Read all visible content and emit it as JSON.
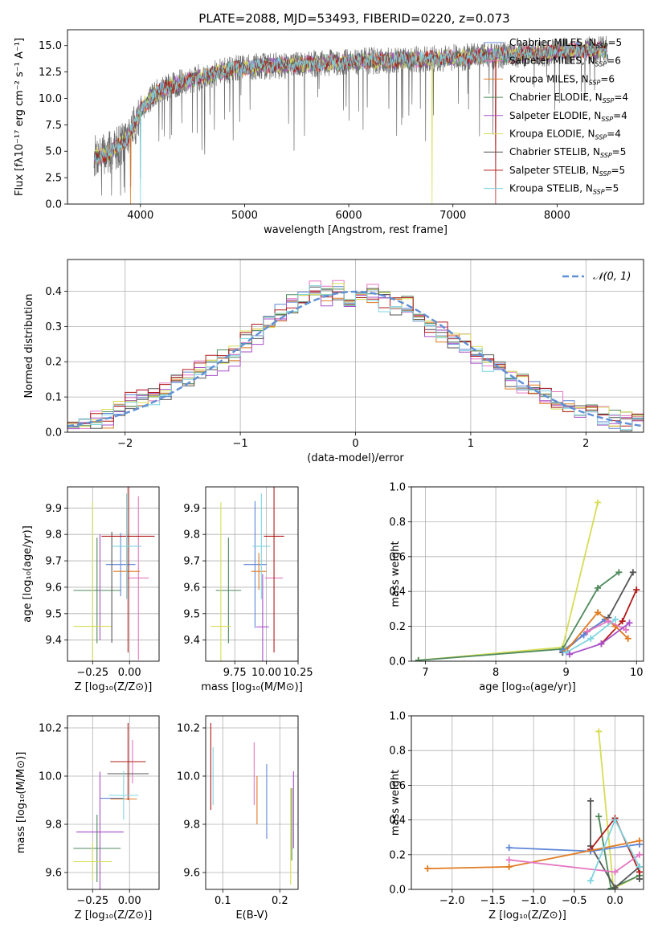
{
  "figure_title": "PLATE=2088, MJD=53493, FIBERID=0220, z=0.073",
  "colors": {
    "Chabrier MILES": "#5f86d8",
    "Salpeter MILES": "#e377c2",
    "Kroupa MILES": "#e07b22",
    "Chabrier ELODIE": "#4f8a5c",
    "Salpeter ELODIE": "#a84fc8",
    "Kroupa ELODIE": "#d6dd55",
    "Chabrier STELIB": "#555555",
    "Salpeter STELIB": "#b31b1b",
    "Kroupa STELIB": "#7fd4e0",
    "normal": "#5f8fd6",
    "grid": "#b0b0b0"
  },
  "chart_data": [
    {
      "id": "spectrum",
      "type": "line",
      "title": "PLATE=2088, MJD=53493, FIBERID=0220, z=0.073",
      "xlabel": "wavelength [Angstrom, rest frame]",
      "ylabel": "Flux [fλ10⁻¹⁷ erg cm⁻² s⁻¹ A⁻¹]",
      "xlim": [
        3300,
        8830
      ],
      "ylim": [
        0,
        16.5
      ],
      "xticks": [
        4000,
        5000,
        6000,
        7000,
        8000
      ],
      "yticks": [
        0.0,
        2.5,
        5.0,
        7.5,
        10.0,
        12.5,
        15.0
      ],
      "grid": false,
      "legend_position": "right",
      "legend": [
        {
          "name": "Chabrier MILES",
          "nssp": "5"
        },
        {
          "name": "Salpeter MILES",
          "nssp": "6"
        },
        {
          "name": "Kroupa MILES",
          "nssp": "6"
        },
        {
          "name": "Chabrier ELODIE",
          "nssp": "4"
        },
        {
          "name": "Salpeter ELODIE",
          "nssp": "4"
        },
        {
          "name": "Kroupa ELODIE",
          "nssp": "4"
        },
        {
          "name": "Chabrier STELIB",
          "nssp": "5"
        },
        {
          "name": "Salpeter STELIB",
          "nssp": "5"
        },
        {
          "name": "Kroupa STELIB",
          "nssp": "5"
        }
      ],
      "data_envelope": {
        "x": [
          3550,
          3700,
          3850,
          3950,
          4000,
          4150,
          4300,
          4500,
          4700,
          4900,
          5100,
          5300,
          5500,
          5700,
          5900,
          6100,
          6300,
          6500,
          6700,
          6900,
          7100,
          7300,
          7500,
          7700,
          7900,
          8100,
          8300,
          8500
        ],
        "y": [
          4.5,
          4.8,
          6.0,
          7.5,
          9.0,
          10.5,
          11.2,
          11.8,
          12.3,
          12.8,
          13.0,
          13.1,
          13.2,
          13.3,
          13.4,
          13.5,
          13.6,
          13.6,
          13.7,
          13.8,
          13.9,
          14.0,
          14.1,
          14.2,
          14.3,
          14.5,
          14.6,
          14.6
        ]
      },
      "cutoffs": {
        "Kroupa MILES": 3905,
        "Kroupa ELODIE": 6800,
        "Salpeter STELIB": 7410,
        "Kroupa STELIB": 4000
      }
    },
    {
      "id": "residual_hist",
      "type": "bar",
      "xlabel": "(data-model)/error",
      "ylabel": "Normed distribution",
      "xlim": [
        -2.5,
        2.5
      ],
      "ylim": [
        0,
        0.49
      ],
      "xticks": [
        -2,
        -1,
        0,
        1,
        2
      ],
      "yticks": [
        0.0,
        0.1,
        0.2,
        0.3,
        0.4
      ],
      "grid": true,
      "legend_position": "top-right",
      "legend": [
        {
          "name": "𝒩(0, 1)"
        }
      ],
      "bin_width": 0.1,
      "centers": [
        -2.45,
        -2.35,
        -2.25,
        -2.15,
        -2.05,
        -1.95,
        -1.85,
        -1.75,
        -1.65,
        -1.55,
        -1.45,
        -1.35,
        -1.25,
        -1.15,
        -1.05,
        -0.95,
        -0.85,
        -0.75,
        -0.65,
        -0.55,
        -0.45,
        -0.35,
        -0.25,
        -0.15,
        -0.05,
        0.05,
        0.15,
        0.25,
        0.35,
        0.45,
        0.55,
        0.65,
        0.75,
        0.85,
        0.95,
        1.05,
        1.15,
        1.25,
        1.35,
        1.45,
        1.55,
        1.65,
        1.75,
        1.85,
        1.95,
        2.05,
        2.15,
        2.25,
        2.35,
        2.45
      ],
      "values": [
        0.025,
        0.028,
        0.035,
        0.04,
        0.06,
        0.085,
        0.09,
        0.105,
        0.12,
        0.14,
        0.15,
        0.18,
        0.19,
        0.2,
        0.22,
        0.26,
        0.28,
        0.31,
        0.34,
        0.36,
        0.38,
        0.4,
        0.39,
        0.4,
        0.38,
        0.38,
        0.39,
        0.37,
        0.36,
        0.36,
        0.32,
        0.3,
        0.28,
        0.26,
        0.25,
        0.22,
        0.2,
        0.18,
        0.15,
        0.13,
        0.12,
        0.1,
        0.085,
        0.075,
        0.06,
        0.05,
        0.045,
        0.035,
        0.03,
        0.025
      ],
      "series_jitter": [
        0.0,
        0.012,
        -0.01,
        0.02,
        -0.018,
        0.008,
        -0.006,
        0.015,
        -0.012
      ],
      "normal_curve": {
        "name": "𝒩(0, 1)",
        "mu": 0,
        "sigma": 1
      }
    },
    {
      "id": "age_vs_Z",
      "type": "scatter",
      "xlabel": "Z [log₁₀(Z/Z⊙)]",
      "ylabel": "age  [log₁₀(age/yr)]",
      "xlim": [
        -0.42,
        0.2
      ],
      "ylim": [
        9.32,
        9.98
      ],
      "xticks": [
        -0.25,
        0.0
      ],
      "yticks": [
        9.4,
        9.5,
        9.6,
        9.7,
        9.8,
        9.9
      ],
      "grid": true,
      "points": [
        {
          "series": "Chabrier MILES",
          "x": -0.06,
          "y": 9.686,
          "xerr": 0.1,
          "yerr": 0.12
        },
        {
          "series": "Salpeter MILES",
          "x": 0.06,
          "y": 9.635,
          "xerr": 0.07,
          "yerr": 0.31
        },
        {
          "series": "Kroupa MILES",
          "x": -0.02,
          "y": 9.66,
          "xerr": 0.09,
          "yerr": 0.1
        },
        {
          "series": "Chabrier ELODIE",
          "x": -0.22,
          "y": 9.588,
          "xerr": 0.16,
          "yerr": 0.2
        },
        {
          "series": "Salpeter ELODIE",
          "x": -0.2,
          "y": 9.6,
          "xerr": 0.0,
          "yerr": 0.2
        },
        {
          "series": "Kroupa ELODIE",
          "x": -0.25,
          "y": 9.452,
          "xerr": 0.13,
          "yerr": 0.47
        },
        {
          "series": "Chabrier STELIB",
          "x": -0.12,
          "y": 9.6,
          "xerr": 0.0,
          "yerr": 0.21
        },
        {
          "series": "Salpeter STELIB",
          "x": -0.01,
          "y": 9.793,
          "xerr": 0.18,
          "yerr": 0.44
        },
        {
          "series": "Kroupa STELIB",
          "x": -0.02,
          "y": 9.755,
          "xerr": 0.1,
          "yerr": 0.2
        }
      ]
    },
    {
      "id": "age_vs_mass",
      "type": "scatter",
      "xlabel": "mass [log₁₀(M/M⊙)]",
      "ylabel": "",
      "xlim": [
        9.52,
        10.25
      ],
      "ylim": [
        9.32,
        9.98
      ],
      "xticks": [
        9.75,
        10.0,
        10.25
      ],
      "yticks": [
        9.4,
        9.5,
        9.6,
        9.7,
        9.8,
        9.9
      ],
      "grid": true,
      "points": [
        {
          "series": "Chabrier MILES",
          "x": 9.91,
          "y": 9.686,
          "xerr": 0.09,
          "yerr": 0.24
        },
        {
          "series": "Salpeter MILES",
          "x": 10.06,
          "y": 9.635,
          "xerr": 0.07,
          "yerr": 0.0
        },
        {
          "series": "Kroupa MILES",
          "x": 9.94,
          "y": 9.66,
          "xerr": 0.06,
          "yerr": 0.07
        },
        {
          "series": "Chabrier ELODIE",
          "x": 9.7,
          "y": 9.588,
          "xerr": 0.1,
          "yerr": 0.2
        },
        {
          "series": "Salpeter ELODIE",
          "x": 9.97,
          "y": 9.45,
          "xerr": 0.05,
          "yerr": 0.2
        },
        {
          "series": "Kroupa ELODIE",
          "x": 9.64,
          "y": 9.452,
          "xerr": 0.08,
          "yerr": 0.47
        },
        {
          "series": "Chabrier STELIB",
          "x": 10.0,
          "y": 9.64,
          "xerr": 0.0,
          "yerr": 0.0
        },
        {
          "series": "Salpeter STELIB",
          "x": 10.06,
          "y": 9.793,
          "xerr": 0.08,
          "yerr": 0.44
        },
        {
          "series": "Kroupa STELIB",
          "x": 9.96,
          "y": 9.755,
          "xerr": 0.07,
          "yerr": 0.2
        }
      ]
    },
    {
      "id": "massweight_vs_age",
      "type": "line",
      "xlabel": "age  [log₁₀(age/yr)]",
      "ylabel": "mass weight",
      "xlim": [
        6.8,
        10.1
      ],
      "ylim": [
        0,
        1.0
      ],
      "xticks": [
        7,
        8,
        9,
        10
      ],
      "yticks": [
        0.0,
        0.2,
        0.4,
        0.6,
        0.8,
        1.0
      ],
      "grid": true,
      "series": [
        {
          "name": "Kroupa ELODIE",
          "x": [
            6.9,
            8.95,
            9.45
          ],
          "y": [
            0.005,
            0.08,
            0.91
          ]
        },
        {
          "name": "Chabrier ELODIE",
          "x": [
            6.9,
            8.95,
            9.45,
            9.75
          ],
          "y": [
            0.005,
            0.07,
            0.42,
            0.51
          ]
        },
        {
          "name": "Chabrier STELIB",
          "x": [
            8.95,
            9.3,
            9.6,
            9.95
          ],
          "y": [
            0.05,
            0.17,
            0.25,
            0.51
          ]
        },
        {
          "name": "Salpeter STELIB",
          "x": [
            9.5,
            9.8,
            10.0
          ],
          "y": [
            0.1,
            0.23,
            0.41
          ]
        },
        {
          "name": "Chabrier MILES",
          "x": [
            8.95,
            9.25,
            9.55
          ],
          "y": [
            0.06,
            0.15,
            0.24
          ]
        },
        {
          "name": "Kroupa MILES",
          "x": [
            9.0,
            9.45,
            9.7,
            9.88
          ],
          "y": [
            0.06,
            0.28,
            0.2,
            0.13
          ]
        },
        {
          "name": "Salpeter MILES",
          "x": [
            9.3,
            9.6,
            9.85
          ],
          "y": [
            0.17,
            0.23,
            0.18
          ]
        },
        {
          "name": "Kroupa STELIB",
          "x": [
            9.0,
            9.35,
            9.7
          ],
          "y": [
            0.05,
            0.13,
            0.24
          ]
        },
        {
          "name": "Salpeter ELODIE",
          "x": [
            9.05,
            9.5,
            9.9
          ],
          "y": [
            0.04,
            0.1,
            0.22
          ]
        }
      ]
    },
    {
      "id": "mass_vs_Z",
      "type": "scatter",
      "xlabel": "Z [log₁₀(Z/Z⊙)]",
      "ylabel": "mass [log₁₀(M/M⊙)]",
      "xlim": [
        -0.42,
        0.2
      ],
      "ylim": [
        9.53,
        10.25
      ],
      "xticks": [
        -0.25,
        0.0
      ],
      "yticks": [
        9.6,
        9.8,
        10.0,
        10.2
      ],
      "grid": true,
      "points": [
        {
          "series": "Chabrier MILES",
          "x": -0.12,
          "y": 9.908,
          "xerr": 0.08,
          "yerr": 0.0
        },
        {
          "series": "Salpeter MILES",
          "x": 0.02,
          "y": 10.06,
          "xerr": 0.0,
          "yerr": 0.09
        },
        {
          "series": "Kroupa MILES",
          "x": -0.04,
          "y": 9.905,
          "xerr": 0.09,
          "yerr": 0.0
        },
        {
          "series": "Chabrier ELODIE",
          "x": -0.22,
          "y": 9.7,
          "xerr": 0.16,
          "yerr": 0.14
        },
        {
          "series": "Salpeter ELODIE",
          "x": -0.2,
          "y": 9.768,
          "xerr": 0.16,
          "yerr": 0.25
        },
        {
          "series": "Kroupa ELODIE",
          "x": -0.25,
          "y": 9.645,
          "xerr": 0.13,
          "yerr": 0.08
        },
        {
          "series": "Chabrier STELIB",
          "x": -0.01,
          "y": 10.01,
          "xerr": 0.14,
          "yerr": 0.0
        },
        {
          "series": "Salpeter STELIB",
          "x": -0.01,
          "y": 10.06,
          "xerr": 0.12,
          "yerr": 0.16
        },
        {
          "series": "Kroupa STELIB",
          "x": -0.04,
          "y": 9.92,
          "xerr": 0.1,
          "yerr": 0.1
        }
      ]
    },
    {
      "id": "mass_vs_ebv",
      "type": "scatter",
      "xlabel": "E(B-V)",
      "ylabel": "",
      "xlim": [
        0.07,
        0.232
      ],
      "ylim": [
        9.53,
        10.25
      ],
      "xticks": [
        0.1,
        0.2
      ],
      "yticks": [
        9.6,
        9.8,
        10.0,
        10.2
      ],
      "grid": true,
      "points": [
        {
          "series": "Salpeter STELIB",
          "x": 0.079,
          "y": 10.04,
          "xerr": 0.0,
          "yerr": 0.18
        },
        {
          "series": "Kroupa STELIB",
          "x": 0.083,
          "y": 10.0,
          "xerr": 0.0,
          "yerr": 0.12
        },
        {
          "series": "Salpeter MILES",
          "x": 0.155,
          "y": 10.01,
          "xerr": 0.0,
          "yerr": 0.13
        },
        {
          "series": "Kroupa MILES",
          "x": 0.16,
          "y": 9.9,
          "xerr": 0.0,
          "yerr": 0.1
        },
        {
          "series": "Chabrier MILES",
          "x": 0.177,
          "y": 9.895,
          "xerr": 0.0,
          "yerr": 0.155
        },
        {
          "series": "Kroupa ELODIE",
          "x": 0.219,
          "y": 9.75,
          "xerr": 0.0,
          "yerr": 0.2
        },
        {
          "series": "Chabrier ELODIE",
          "x": 0.221,
          "y": 9.8,
          "xerr": 0.0,
          "yerr": 0.15
        },
        {
          "series": "Salpeter ELODIE",
          "x": 0.224,
          "y": 9.86,
          "xerr": 0.0,
          "yerr": 0.16
        }
      ]
    },
    {
      "id": "massweight_vs_Z",
      "type": "line",
      "xlabel": "Z [log₁₀(Z/Z⊙)]",
      "ylabel": "mass weight",
      "xlim": [
        -2.5,
        0.35
      ],
      "ylim": [
        0,
        1.0
      ],
      "xticks": [
        -2.0,
        -1.5,
        -1.0,
        -0.5,
        0.0
      ],
      "yticks": [
        0.0,
        0.2,
        0.4,
        0.6,
        0.8,
        1.0
      ],
      "grid": true,
      "series": [
        {
          "name": "Kroupa ELODIE",
          "x": [
            -0.2,
            -0.02,
            0.3
          ],
          "y": [
            0.91,
            0.005,
            0.08
          ]
        },
        {
          "name": "Chabrier ELODIE",
          "x": [
            -0.2,
            -0.05,
            0.3
          ],
          "y": [
            0.42,
            0.005,
            0.08
          ]
        },
        {
          "name": "Chabrier STELIB",
          "x": [
            -0.3,
            -0.3,
            0.0,
            0.3,
            0.3
          ],
          "y": [
            0.51,
            0.25,
            0.01,
            0.13,
            0.06
          ]
        },
        {
          "name": "Salpeter STELIB",
          "x": [
            -0.3,
            0.0,
            0.3
          ],
          "y": [
            0.23,
            0.41,
            0.1
          ]
        },
        {
          "name": "Chabrier MILES",
          "x": [
            -1.3,
            -0.3,
            0.3
          ],
          "y": [
            0.24,
            0.22,
            0.26
          ]
        },
        {
          "name": "Kroupa MILES",
          "x": [
            -2.3,
            -1.3,
            0.3
          ],
          "y": [
            0.12,
            0.13,
            0.28
          ]
        },
        {
          "name": "Salpeter MILES",
          "x": [
            -1.3,
            0.0,
            0.3
          ],
          "y": [
            0.17,
            0.1,
            0.2
          ]
        },
        {
          "name": "Kroupa STELIB",
          "x": [
            -0.3,
            0.0,
            0.3
          ],
          "y": [
            0.05,
            0.4,
            0.13
          ]
        }
      ]
    }
  ]
}
